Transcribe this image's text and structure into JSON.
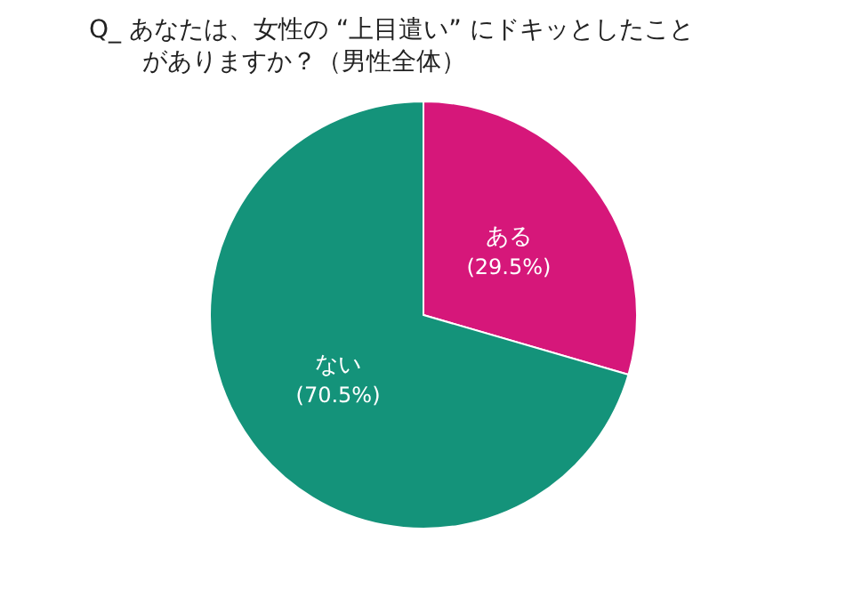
{
  "chart_data": {
    "type": "pie",
    "title": "Q_ あなたは、女性の “上目遣い” にドキッとしたことがありますか？（男性全体）",
    "categories": [
      "ある",
      "ない"
    ],
    "values": [
      29.5,
      70.5
    ],
    "colors": [
      "#d6177a",
      "#14937a"
    ],
    "value_labels": [
      "(29.5%)",
      "(70.5%)"
    ]
  }
}
